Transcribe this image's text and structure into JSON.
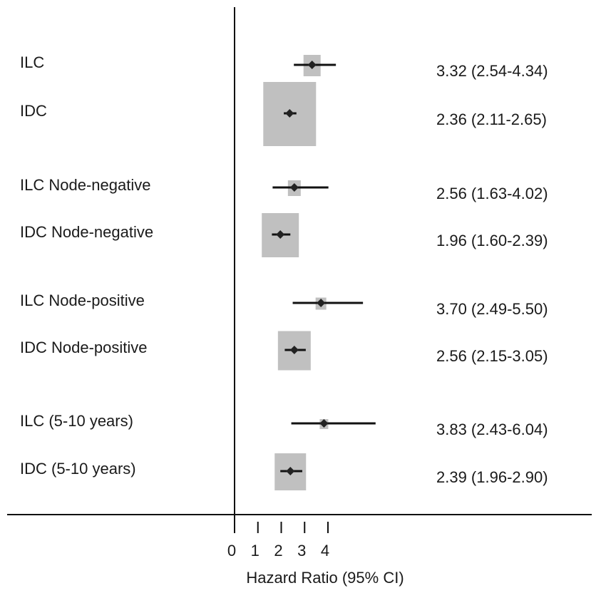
{
  "chart_data": {
    "type": "forest",
    "xlabel": "Hazard Ratio (95% CI)",
    "x_ticks": [
      0,
      1,
      2,
      3,
      4
    ],
    "reference_line": 0,
    "colors": {
      "box": "#c0c0c0",
      "marker": "#222222",
      "line": "#111111"
    },
    "rows": [
      {
        "label": "ILC",
        "hr": 3.32,
        "lower": 2.54,
        "upper": 4.34,
        "ci_text": "3.32 (2.54-4.34)"
      },
      {
        "label": "IDC",
        "hr": 2.36,
        "lower": 2.11,
        "upper": 2.65,
        "ci_text": "2.36 (2.11-2.65)"
      },
      {
        "label": "ILC Node-negative",
        "hr": 2.56,
        "lower": 1.63,
        "upper": 4.02,
        "ci_text": "2.56 (1.63-4.02)"
      },
      {
        "label": "IDC Node-negative",
        "hr": 1.96,
        "lower": 1.6,
        "upper": 2.39,
        "ci_text": "1.96 (1.60-2.39)"
      },
      {
        "label": "ILC Node-positive",
        "hr": 3.7,
        "lower": 2.49,
        "upper": 5.5,
        "ci_text": "3.70 (2.49-5.50)"
      },
      {
        "label": "IDC Node-positive",
        "hr": 2.56,
        "lower": 2.15,
        "upper": 3.05,
        "ci_text": "2.56 (2.15-3.05)"
      },
      {
        "label": "ILC (5-10 years)",
        "hr": 3.83,
        "lower": 2.43,
        "upper": 6.04,
        "ci_text": "3.83 (2.43-6.04)"
      },
      {
        "label": "IDC (5-10 years)",
        "hr": 2.39,
        "lower": 1.96,
        "upper": 2.9,
        "ci_text": "2.39 (1.96-2.90)"
      }
    ]
  }
}
